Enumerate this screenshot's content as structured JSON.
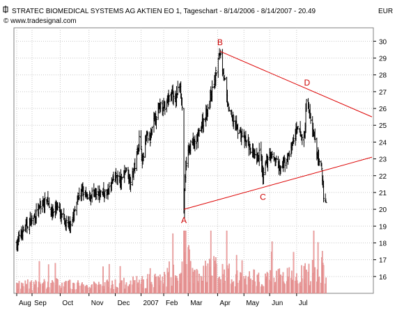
{
  "header": {
    "title": "STRATEC BIOMEDICAL SYSTEMS AG AKTIEN EO 1, Tageschart - 8/14/2006 - 8/14/2007 - 20.49",
    "source": "© www.tradesignal.com",
    "currency": "EUR"
  },
  "chart_data": {
    "type": "bar",
    "subtype": "ohlc",
    "title": "STRATEC BIOMEDICAL SYSTEMS AG AKTIEN EO 1, Tageschart - 8/14/2006 - 8/14/2007 - 20.49",
    "ylabel": "EUR",
    "ylim": [
      15.0,
      30.8
    ],
    "y_ticks": [
      "16",
      "17",
      "18",
      "19",
      "20",
      "21",
      "22",
      "23",
      "24",
      "25",
      "26",
      "27",
      "28",
      "29",
      "30"
    ],
    "x_ticks": [
      "Aug",
      "Sep",
      "Oct",
      "Nov",
      "Dec",
      "2007",
      "Feb",
      "Mar",
      "Apr",
      "May",
      "Jun",
      "Jul"
    ],
    "x_tick_days": [
      0,
      25,
      71,
      118,
      161,
      203,
      240,
      280,
      328,
      371,
      413,
      457
    ],
    "last_value": 20.49,
    "close_path": [
      [
        0,
        17.9
      ],
      [
        8,
        18.6
      ],
      [
        18,
        19.1
      ],
      [
        30,
        19.6
      ],
      [
        40,
        20.2
      ],
      [
        50,
        20.6
      ],
      [
        58,
        19.8
      ],
      [
        66,
        20.2
      ],
      [
        76,
        19.3
      ],
      [
        84,
        19.0
      ],
      [
        92,
        19.5
      ],
      [
        100,
        20.7
      ],
      [
        108,
        21.1
      ],
      [
        116,
        20.6
      ],
      [
        124,
        21.0
      ],
      [
        132,
        20.7
      ],
      [
        140,
        21.1
      ],
      [
        148,
        20.9
      ],
      [
        155,
        21.6
      ],
      [
        163,
        22.0
      ],
      [
        170,
        21.6
      ],
      [
        178,
        22.4
      ],
      [
        185,
        21.7
      ],
      [
        193,
        22.6
      ],
      [
        200,
        24.2
      ],
      [
        206,
        22.9
      ],
      [
        212,
        24.4
      ],
      [
        218,
        24.1
      ],
      [
        224,
        25.3
      ],
      [
        230,
        25.7
      ],
      [
        236,
        26.4
      ],
      [
        242,
        26.0
      ],
      [
        248,
        26.6
      ],
      [
        254,
        26.9
      ],
      [
        258,
        26.2
      ],
      [
        263,
        27.1
      ],
      [
        267,
        27.5
      ],
      [
        271,
        25.6
      ],
      [
        273,
        20.0
      ],
      [
        276,
        22.6
      ],
      [
        280,
        23.4
      ],
      [
        286,
        24.1
      ],
      [
        292,
        23.8
      ],
      [
        298,
        24.6
      ],
      [
        304,
        25.2
      ],
      [
        310,
        25.8
      ],
      [
        316,
        26.6
      ],
      [
        320,
        27.2
      ],
      [
        324,
        27.8
      ],
      [
        328,
        28.7
      ],
      [
        332,
        29.4
      ],
      [
        336,
        28.5
      ],
      [
        340,
        27.6
      ],
      [
        344,
        26.2
      ],
      [
        350,
        25.6
      ],
      [
        356,
        25.1
      ],
      [
        362,
        24.7
      ],
      [
        368,
        24.4
      ],
      [
        374,
        24.0
      ],
      [
        380,
        23.7
      ],
      [
        386,
        23.3
      ],
      [
        392,
        22.8
      ],
      [
        398,
        23.6
      ],
      [
        402,
        21.7
      ],
      [
        406,
        22.6
      ],
      [
        412,
        23.3
      ],
      [
        418,
        23.1
      ],
      [
        424,
        22.9
      ],
      [
        430,
        22.3
      ],
      [
        436,
        22.7
      ],
      [
        442,
        23.0
      ],
      [
        448,
        23.7
      ],
      [
        454,
        24.4
      ],
      [
        460,
        24.8
      ],
      [
        466,
        24.2
      ],
      [
        470,
        24.5
      ],
      [
        474,
        27.0
      ],
      [
        478,
        25.6
      ],
      [
        482,
        24.8
      ],
      [
        486,
        24.2
      ],
      [
        490,
        23.4
      ],
      [
        494,
        22.7
      ],
      [
        498,
        22.4
      ],
      [
        502,
        20.3
      ],
      [
        505,
        20.49
      ]
    ],
    "volume_profile": [
      [
        0,
        0.18
      ],
      [
        60,
        0.22
      ],
      [
        120,
        0.16
      ],
      [
        200,
        0.25
      ],
      [
        240,
        0.34
      ],
      [
        270,
        0.45
      ],
      [
        273,
        1.0
      ],
      [
        290,
        0.42
      ],
      [
        330,
        0.55
      ],
      [
        360,
        0.33
      ],
      [
        400,
        0.38
      ],
      [
        430,
        0.35
      ],
      [
        470,
        0.42
      ],
      [
        500,
        0.6
      ],
      [
        505,
        0.5
      ]
    ],
    "trendlines": [
      {
        "x1": 273,
        "y1": 20.0,
        "x2": 580,
        "y2": 23.1
      },
      {
        "x1": 332,
        "y1": 29.4,
        "x2": 580,
        "y2": 25.5
      }
    ],
    "annotations": [
      {
        "label": "A",
        "day": 273,
        "value": 20.0,
        "side": "below"
      },
      {
        "label": "B",
        "day": 332,
        "value": 29.4,
        "side": "above"
      },
      {
        "label": "C",
        "day": 402,
        "value": 21.4,
        "side": "below"
      },
      {
        "label": "D",
        "day": 474,
        "value": 27.0,
        "side": "above"
      }
    ],
    "colors": {
      "bars": "#000000",
      "volume": "#f4a0a0",
      "volume_outline": "#c87878",
      "trendline": "#dd0000",
      "grid": "#c8c8c8",
      "annotation": "#cc0000"
    },
    "grid": true
  }
}
